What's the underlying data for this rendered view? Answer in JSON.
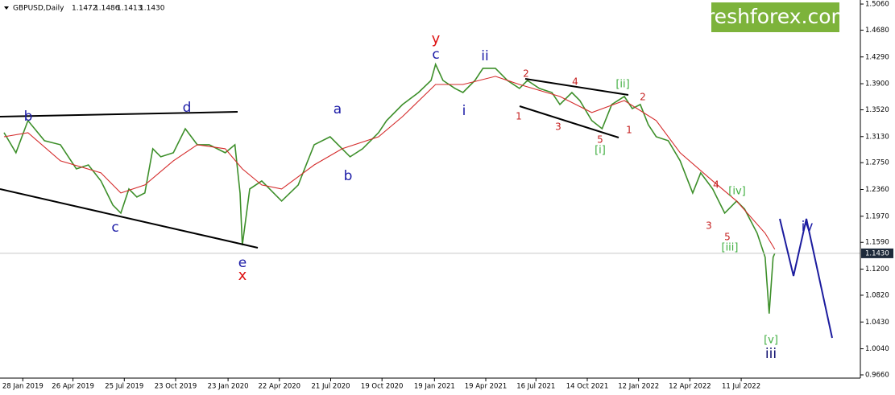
{
  "header": {
    "symbol": "GBPUSD,Daily",
    "open": 1.1472,
    "high": 1.1486,
    "low": 1.1413,
    "close": {
      "value": 1.143,
      "label": "1.1430"
    }
  },
  "logo": "freshforex.com",
  "chart_data": {
    "type": "line",
    "xlim": [
      "2018-12-19",
      "2023-02-05"
    ],
    "xticks": [
      {
        "value": "2019-01-28",
        "label": "28 Jan 2019"
      },
      {
        "value": "2019-04-26",
        "label": "26 Apr 2019"
      },
      {
        "value": "2019-07-25",
        "label": "25 Jul 2019"
      },
      {
        "value": "2019-10-23",
        "label": "23 Oct 2019"
      },
      {
        "value": "2020-01-23",
        "label": "23 Jan 2020"
      },
      {
        "value": "2020-04-22",
        "label": "22 Apr 2020"
      },
      {
        "value": "2020-07-21",
        "label": "21 Jul 2020"
      },
      {
        "value": "2020-10-19",
        "label": "19 Oct 2020"
      },
      {
        "value": "2021-01-19",
        "label": "19 Jan 2021"
      },
      {
        "value": "2021-04-19",
        "label": "19 Apr 2021"
      },
      {
        "value": "2021-07-16",
        "label": "16 Jul 2021"
      },
      {
        "value": "2021-10-14",
        "label": "14 Oct 2021"
      },
      {
        "value": "2022-01-12",
        "label": "12 Jan 2022"
      },
      {
        "value": "2022-04-12",
        "label": "12 Apr 2022"
      },
      {
        "value": "2022-07-11",
        "label": "11 Jul 2022"
      }
    ],
    "ylim": [
      0.9613,
      1.5119
    ],
    "yticks": [
      {
        "value": 1.506,
        "label": "1.5060"
      },
      {
        "value": 1.468,
        "label": "1.4680"
      },
      {
        "value": 1.429,
        "label": "1.4290"
      },
      {
        "value": 1.39,
        "label": "1.3900"
      },
      {
        "value": 1.352,
        "label": "1.3520"
      },
      {
        "value": 1.313,
        "label": "1.3130"
      },
      {
        "value": 1.275,
        "label": "1.2750"
      },
      {
        "value": 1.236,
        "label": "1.2360"
      },
      {
        "value": 1.197,
        "label": "1.1970"
      },
      {
        "value": 1.159,
        "label": "1.1590"
      },
      {
        "value": 1.12,
        "label": "1.1200"
      },
      {
        "value": 1.082,
        "label": "1.0820"
      },
      {
        "value": 1.043,
        "label": "1.0430"
      },
      {
        "value": 1.004,
        "label": "1.0040"
      },
      {
        "value": 0.966,
        "label": "0.9660"
      }
    ],
    "series": [
      {
        "color": "#3d8f2a",
        "x": [
          "2018-12-26",
          "2019-01-16",
          "2019-02-06",
          "2019-03-07",
          "2019-04-04",
          "2019-05-02",
          "2019-05-23",
          "2019-06-14",
          "2019-07-05",
          "2019-07-19",
          "2019-08-02",
          "2019-08-16",
          "2019-08-30",
          "2019-09-13",
          "2019-09-27",
          "2019-10-19",
          "2019-11-09",
          "2019-11-30",
          "2019-12-21",
          "2020-01-18",
          "2020-02-04",
          "2020-02-13",
          "2020-02-17",
          "2020-03-01",
          "2020-03-22",
          "2020-04-12",
          "2020-04-26",
          "2020-05-25",
          "2020-06-22",
          "2020-07-20",
          "2020-08-10",
          "2020-08-24",
          "2020-09-15",
          "2020-09-29",
          "2020-10-13",
          "2020-10-27",
          "2020-11-24",
          "2020-12-22",
          "2021-01-13",
          "2021-01-21",
          "2021-02-03",
          "2021-02-24",
          "2021-03-10",
          "2021-03-31",
          "2021-04-14",
          "2021-05-06",
          "2021-05-27",
          "2021-06-17",
          "2021-07-01",
          "2021-07-22",
          "2021-08-13",
          "2021-08-27",
          "2021-09-17",
          "2021-10-01",
          "2021-10-22",
          "2021-11-09",
          "2021-11-26",
          "2021-12-18",
          "2022-01-01",
          "2022-01-15",
          "2022-01-29",
          "2022-02-12",
          "2022-03-05",
          "2022-03-26",
          "2022-04-17",
          "2022-05-01",
          "2022-05-22",
          "2022-06-12",
          "2022-07-03",
          "2022-07-17",
          "2022-08-08",
          "2022-08-22",
          "2022-08-29",
          "2022-09-05",
          "2022-09-08"
        ],
        "values": [
          1.3187,
          1.2894,
          1.3363,
          1.307,
          1.3011,
          1.266,
          1.2718,
          1.2484,
          1.2133,
          1.2016,
          1.2367,
          1.225,
          1.2309,
          1.2953,
          1.2836,
          1.2894,
          1.3245,
          1.3011,
          1.3011,
          1.2894,
          1.3011,
          1.2309,
          1.1547,
          1.2367,
          1.2484,
          1.2309,
          1.2191,
          1.2426,
          1.3011,
          1.3128,
          1.2953,
          1.2836,
          1.2953,
          1.307,
          1.3187,
          1.3363,
          1.3597,
          1.3772,
          1.3948,
          1.4182,
          1.3948,
          1.3831,
          1.3772,
          1.3948,
          1.4124,
          1.4124,
          1.3948,
          1.3831,
          1.3948,
          1.3831,
          1.3772,
          1.3597,
          1.3772,
          1.3655,
          1.3363,
          1.3245,
          1.3597,
          1.3714,
          1.3538,
          1.3597,
          1.3304,
          1.3128,
          1.307,
          1.2777,
          1.2309,
          1.2601,
          1.2367,
          1.2016,
          1.2191,
          1.2074,
          1.1723,
          1.1372,
          1.0552,
          1.1372,
          1.143
        ]
      },
      {
        "color": "#d42a2a",
        "x": [
          "2018-12-26",
          "2019-02-06",
          "2019-04-04",
          "2019-06-14",
          "2019-07-19",
          "2019-08-30",
          "2019-10-19",
          "2019-11-30",
          "2020-01-18",
          "2020-02-17",
          "2020-03-22",
          "2020-04-26",
          "2020-06-22",
          "2020-08-10",
          "2020-10-13",
          "2020-11-24",
          "2021-01-21",
          "2021-03-10",
          "2021-05-06",
          "2021-06-17",
          "2021-08-27",
          "2021-10-22",
          "2021-12-18",
          "2022-02-12",
          "2022-03-26",
          "2022-05-22",
          "2022-07-03",
          "2022-08-22",
          "2022-09-08"
        ],
        "values": [
          1.3128,
          1.3187,
          1.2777,
          1.2601,
          1.2309,
          1.2426,
          1.2777,
          1.3011,
          1.2953,
          1.266,
          1.2426,
          1.2367,
          1.2718,
          1.2953,
          1.3128,
          1.3421,
          1.3889,
          1.3889,
          1.4007,
          1.3889,
          1.3714,
          1.348,
          1.3655,
          1.3363,
          1.2894,
          1.2484,
          1.2191,
          1.1723,
          1.1489
        ]
      }
    ]
  },
  "annotations": [
    "b",
    "d",
    "c",
    "e",
    "x",
    "a",
    "b",
    "y",
    "c",
    "ii",
    "i",
    "2",
    "4",
    "1",
    "3",
    "5",
    "[i]",
    "[ii]",
    "2",
    "1",
    "4",
    "[iv]",
    "3",
    "5",
    "[iii]",
    "iv",
    "[v]",
    "iii"
  ]
}
